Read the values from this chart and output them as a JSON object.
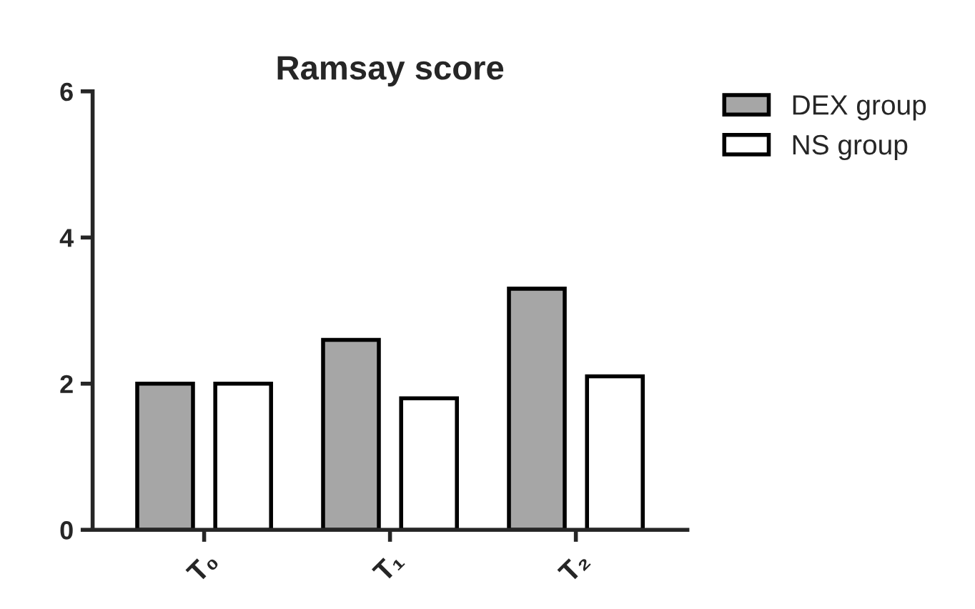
{
  "chart_data": {
    "type": "bar",
    "title": "Ramsay score",
    "categories": [
      "T₀",
      "T₁",
      "T₂"
    ],
    "series": [
      {
        "name": "DEX group",
        "color": "#a6a6a6",
        "values": [
          2.0,
          2.6,
          3.3
        ]
      },
      {
        "name": "NS group",
        "color": "#ffffff",
        "values": [
          2.0,
          1.8,
          2.1
        ]
      }
    ],
    "ylim": [
      0,
      6
    ],
    "yticks": [
      0,
      2,
      4,
      6
    ],
    "grid": false,
    "legend": "top right"
  }
}
